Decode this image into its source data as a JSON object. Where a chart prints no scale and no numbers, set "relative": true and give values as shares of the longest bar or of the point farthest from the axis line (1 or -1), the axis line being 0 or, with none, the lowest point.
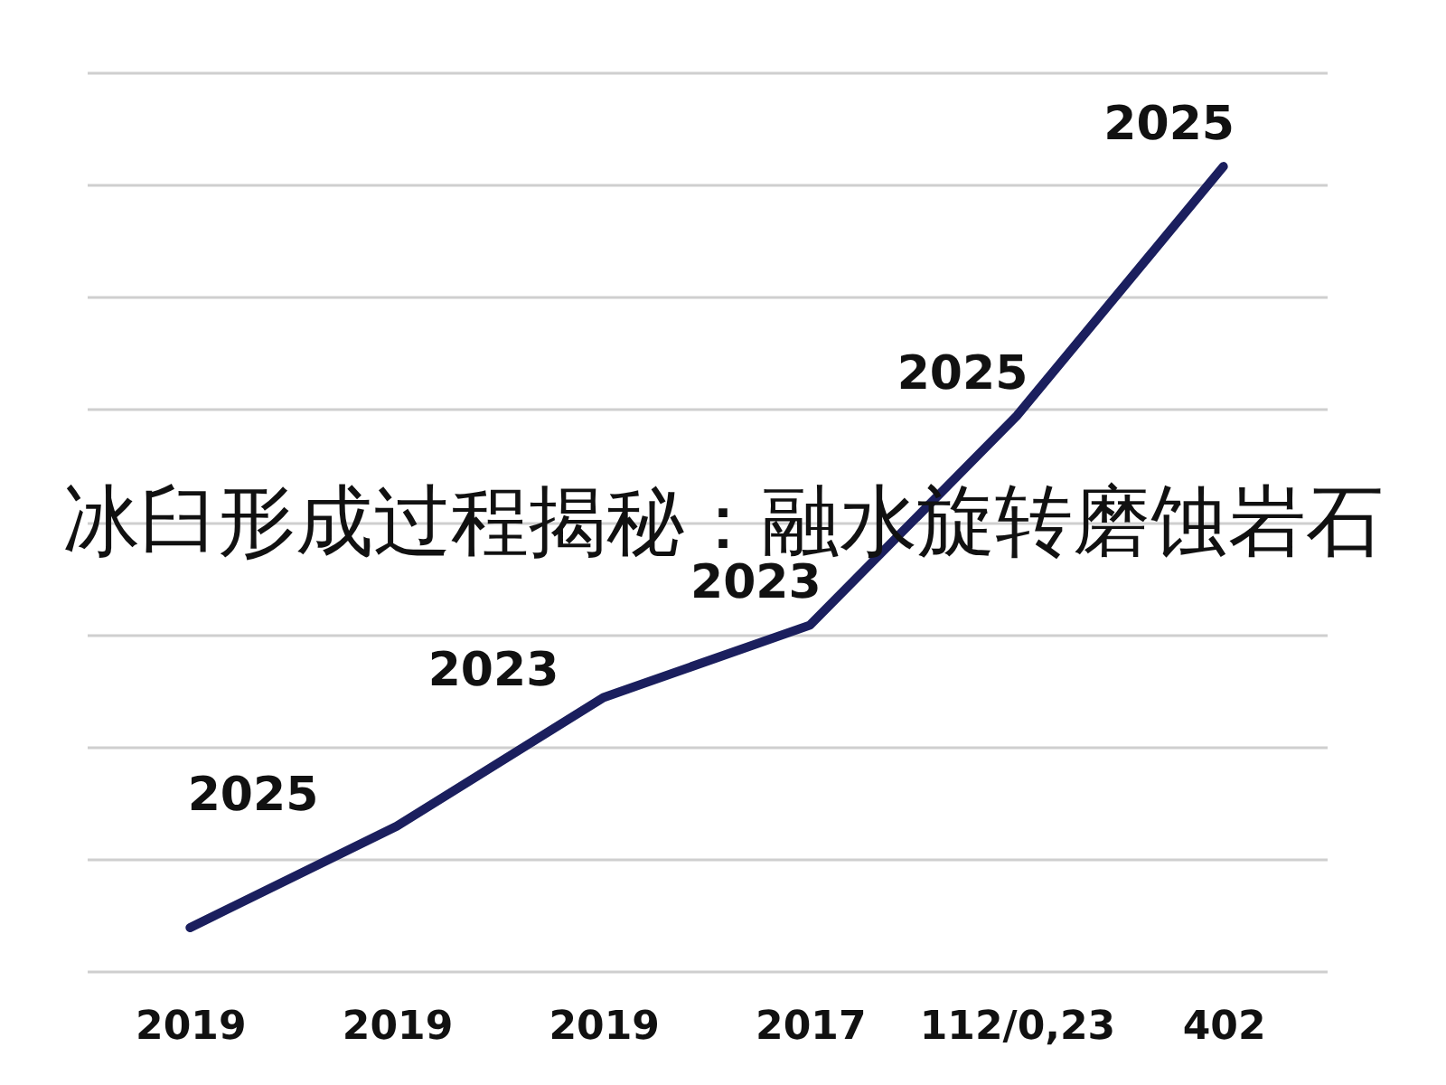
{
  "chart_data": {
    "type": "line",
    "relative": true,
    "categories": [
      "2019",
      "2019",
      "2019",
      "2017",
      "112/0,23",
      "402"
    ],
    "values": [
      0.054,
      0.18,
      0.34,
      0.43,
      0.69,
      1
    ],
    "color": "#1b1f5e",
    "annotations": [
      "冰臼形成过程揭秘：融水旋转磨蚀岩石",
      "2025",
      "2023",
      {
        "text": "2023",
        "x": "2017",
        "y": 0.43
      },
      {
        "text": "2025",
        "x": "112/0,23",
        "y": 0.69
      },
      {
        "text": "2025",
        "x": "402",
        "y": 1
      }
    ],
    "grid": "y"
  }
}
